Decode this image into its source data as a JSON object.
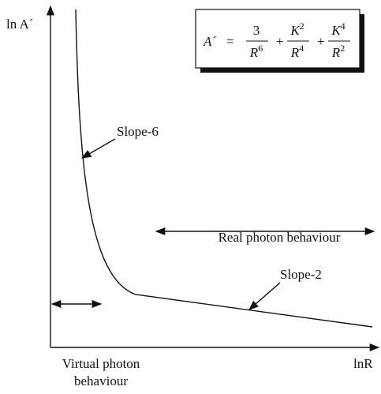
{
  "y_axis_label": "ln A´",
  "x_axis_label": "lnR",
  "formula": {
    "lhs": "A´",
    "equals": "=",
    "operator": "+",
    "terms": [
      {
        "num": "3",
        "num_exp": "",
        "den": "R",
        "den_exp": "6"
      },
      {
        "num": "K",
        "num_exp": "2",
        "den": "R",
        "den_exp": "4"
      },
      {
        "num": "K",
        "num_exp": "4",
        "den": "R",
        "den_exp": "2"
      }
    ]
  },
  "annotations": {
    "slope_steep": "Slope-6",
    "slope_shallow": "Slope-2",
    "real": "Real photon behaviour",
    "virtual": [
      "Virtual photon",
      "behaviour"
    ]
  }
}
